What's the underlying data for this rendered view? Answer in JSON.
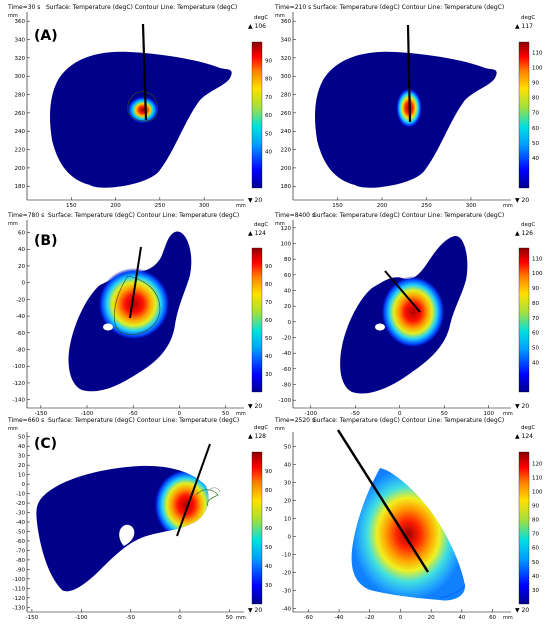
{
  "colors": {
    "cold": "#00008b",
    "hot": "#8b0000",
    "background": "#ffffff",
    "axis": "#000000"
  },
  "chart_data": [
    {
      "type": "heatmap",
      "panel_label": "(A)",
      "time_label": "Time=30 s",
      "surface_label": "Surface: Temperature (degC) Contour Line: Temperature (degC)",
      "unit": "mm",
      "cbar_unit": "degC",
      "cbar_max_label": "▲ 106",
      "cbar_min_label": "▼ 20",
      "x_ticks": [
        "150",
        "200",
        "250",
        "300"
      ],
      "y_ticks": [
        "360",
        "340",
        "320",
        "300",
        "280",
        "260",
        "240",
        "220",
        "200",
        "180"
      ],
      "cbar_ticks": [
        "90",
        "80",
        "70",
        "60",
        "50",
        "40"
      ],
      "xlim": [
        100,
        345
      ],
      "ylim": [
        165,
        370
      ],
      "cbar_range": [
        20,
        106
      ]
    },
    {
      "type": "heatmap",
      "time_label": "Time=210 s",
      "surface_label": "Surface: Temperature (degC) Contour Line: Temperature (degC)",
      "unit": "mm",
      "cbar_unit": "degC",
      "cbar_max_label": "▲ 117",
      "cbar_min_label": "▼ 20",
      "x_ticks": [
        "150",
        "200",
        "250",
        "300"
      ],
      "y_ticks": [
        "360",
        "340",
        "320",
        "300",
        "280",
        "260",
        "240",
        "220",
        "200",
        "180"
      ],
      "cbar_ticks": [
        "110",
        "100",
        "90",
        "80",
        "70",
        "60",
        "50",
        "40"
      ],
      "xlim": [
        100,
        345
      ],
      "ylim": [
        165,
        370
      ],
      "cbar_range": [
        20,
        117
      ]
    },
    {
      "type": "heatmap",
      "panel_label": "(B)",
      "time_label": "Time=780 s",
      "surface_label": "Surface: Temperature (degC) Contour Line: Temperature (degC)",
      "unit": "mm",
      "cbar_unit": "degC",
      "cbar_max_label": "▲ 124",
      "cbar_min_label": "▼ 20",
      "x_ticks": [
        "-150",
        "-100",
        "-50",
        "0",
        "50"
      ],
      "y_ticks": [
        "60",
        "40",
        "20",
        "0",
        "-20",
        "-40",
        "-60",
        "-80",
        "-100",
        "-120",
        "-140"
      ],
      "cbar_ticks": [
        "90",
        "80",
        "70",
        "60",
        "50",
        "40",
        "30"
      ],
      "xlim": [
        -165,
        70
      ],
      "ylim": [
        -150,
        75
      ],
      "cbar_range": [
        20,
        124
      ]
    },
    {
      "type": "heatmap",
      "time_label": "Time=8400 s",
      "surface_label": "Surface: Temperature (degC) Contour Line: Temperature (degC)",
      "unit": "mm",
      "cbar_unit": "degC",
      "cbar_max_label": "▲ 126",
      "cbar_min_label": "▼ 20",
      "x_ticks": [
        "-100",
        "-50",
        "0",
        "50",
        "100"
      ],
      "y_ticks": [
        "120",
        "100",
        "80",
        "60",
        "40",
        "20",
        "0",
        "-20",
        "-40",
        "-60",
        "-80",
        "-100"
      ],
      "cbar_ticks": [
        "110",
        "100",
        "90",
        "80",
        "70",
        "60",
        "50",
        "40"
      ],
      "xlim": [
        -120,
        125
      ],
      "ylim": [
        -110,
        130
      ],
      "cbar_range": [
        20,
        126
      ]
    },
    {
      "type": "heatmap",
      "panel_label": "(C)",
      "time_label": "Time=660 s",
      "surface_label": "Surface: Temperature (degC) Contour Line: Temperature (degC)",
      "unit": "mm",
      "cbar_unit": "degC",
      "cbar_max_label": "▲ 128",
      "cbar_min_label": "▼ 20",
      "x_ticks": [
        "-150",
        "-100",
        "-50",
        "0",
        "50"
      ],
      "y_ticks": [
        "50",
        "40",
        "30",
        "20",
        "10",
        "0",
        "-10",
        "-20",
        "-30",
        "-40",
        "-50",
        "-60",
        "-70",
        "-80",
        "-90",
        "-100",
        "-110",
        "-120",
        "-130"
      ],
      "cbar_ticks": [
        "90",
        "80",
        "70",
        "60",
        "50",
        "40",
        "30"
      ],
      "xlim": [
        -155,
        65
      ],
      "ylim": [
        -135,
        55
      ],
      "cbar_range": [
        20,
        128
      ]
    },
    {
      "type": "heatmap",
      "time_label": "Time=2520 s",
      "surface_label": "Surface: Temperature (degC) Contour Line: Temperature (degC)",
      "unit": "mm",
      "cbar_unit": "degC",
      "cbar_max_label": "▲ 124",
      "cbar_min_label": "▼ 20",
      "x_ticks": [
        "-60",
        "-40",
        "-20",
        "0",
        "20",
        "40",
        "60"
      ],
      "y_ticks": [
        "50",
        "40",
        "30",
        "20",
        "10",
        "0",
        "-10",
        "-20",
        "-30",
        "-40"
      ],
      "cbar_ticks": [
        "120",
        "110",
        "100",
        "90",
        "80",
        "70",
        "60",
        "50",
        "40",
        "30"
      ],
      "xlim": [
        -70,
        72
      ],
      "ylim": [
        -42,
        58
      ],
      "cbar_range": [
        20,
        124
      ]
    }
  ]
}
